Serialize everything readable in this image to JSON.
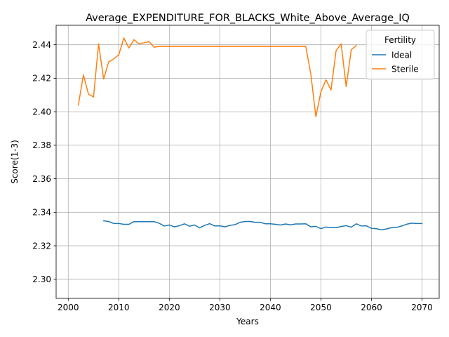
{
  "chart_data": {
    "type": "line",
    "title": "Average_EXPENDITURE_FOR_BLACKS_White_Above_Average_IQ",
    "xlabel": "Years",
    "ylabel": "Score(1-3)",
    "xlim": [
      1997.6,
      2073.4
    ],
    "ylim": [
      2.2886,
      2.4516
    ],
    "xticks": [
      2000,
      2010,
      2020,
      2030,
      2040,
      2050,
      2060,
      2070
    ],
    "yticks": [
      2.3,
      2.32,
      2.34,
      2.36,
      2.38,
      2.4,
      2.42,
      2.44
    ],
    "xtick_labels": [
      "2000",
      "2010",
      "2020",
      "2030",
      "2040",
      "2050",
      "2060",
      "2070"
    ],
    "ytick_labels": [
      "2.30",
      "2.32",
      "2.34",
      "2.36",
      "2.38",
      "2.40",
      "2.42",
      "2.44"
    ],
    "grid": true,
    "legend": {
      "title": "Fertility",
      "placement": "top-right"
    },
    "series": [
      {
        "name": "Ideal",
        "color": "#1f77b4",
        "x": [
          2007,
          2008,
          2009,
          2010,
          2011,
          2012,
          2013,
          2014,
          2015,
          2016,
          2017,
          2018,
          2019,
          2020,
          2021,
          2022,
          2023,
          2024,
          2025,
          2026,
          2027,
          2028,
          2029,
          2030,
          2031,
          2032,
          2033,
          2034,
          2035,
          2036,
          2037,
          2038,
          2039,
          2040,
          2041,
          2042,
          2043,
          2044,
          2045,
          2046,
          2047,
          2048,
          2049,
          2050,
          2051,
          2052,
          2053,
          2054,
          2055,
          2056,
          2057,
          2058,
          2059,
          2060,
          2061,
          2062,
          2063,
          2064,
          2065,
          2066,
          2067,
          2068,
          2069,
          2070
        ],
        "y": [
          2.3349,
          2.3345,
          2.3333,
          2.3333,
          2.3328,
          2.3328,
          2.3344,
          2.3344,
          2.3344,
          2.3344,
          2.3344,
          2.3334,
          2.3318,
          2.3324,
          2.3313,
          2.332,
          2.3331,
          2.3317,
          2.3324,
          2.3307,
          2.3322,
          2.3332,
          2.3318,
          2.3319,
          2.3313,
          2.3322,
          2.3326,
          2.334,
          2.3345,
          2.3345,
          2.334,
          2.334,
          2.3331,
          2.3331,
          2.3328,
          2.3324,
          2.333,
          2.3325,
          2.333,
          2.333,
          2.3331,
          2.3313,
          2.3316,
          2.3302,
          2.3312,
          2.3308,
          2.3308,
          2.3315,
          2.332,
          2.3311,
          2.3331,
          2.3318,
          2.3319,
          2.3304,
          2.3302,
          2.3295,
          2.3301,
          2.3308,
          2.331,
          2.3318,
          2.3329,
          2.3335,
          2.3333,
          2.3333
        ]
      },
      {
        "name": "Sterile",
        "color": "#ff7f0e",
        "x": [
          2002,
          2003,
          2004,
          2005,
          2006,
          2007,
          2008,
          2009,
          2010,
          2011,
          2012,
          2013,
          2014,
          2015,
          2016,
          2017,
          2018,
          2019,
          2020,
          2021,
          2022,
          2023,
          2024,
          2025,
          2026,
          2027,
          2028,
          2029,
          2030,
          2031,
          2032,
          2033,
          2034,
          2035,
          2036,
          2037,
          2038,
          2039,
          2040,
          2041,
          2042,
          2043,
          2044,
          2045,
          2046,
          2047,
          2048,
          2049,
          2050,
          2051,
          2052,
          2053,
          2054,
          2055,
          2056,
          2057
        ],
        "y": [
          2.404,
          2.422,
          2.4105,
          2.4088,
          2.4405,
          2.4195,
          2.4297,
          2.4315,
          2.434,
          2.444,
          2.438,
          2.443,
          2.4405,
          2.4412,
          2.4418,
          2.4385,
          2.439,
          2.439,
          2.439,
          2.439,
          2.439,
          2.439,
          2.439,
          2.439,
          2.439,
          2.439,
          2.439,
          2.439,
          2.439,
          2.439,
          2.439,
          2.439,
          2.439,
          2.439,
          2.439,
          2.439,
          2.439,
          2.439,
          2.439,
          2.439,
          2.439,
          2.439,
          2.439,
          2.439,
          2.439,
          2.439,
          2.4225,
          2.397,
          2.412,
          2.419,
          2.413,
          2.4365,
          2.4405,
          2.415,
          2.437,
          2.4395
        ]
      }
    ]
  }
}
